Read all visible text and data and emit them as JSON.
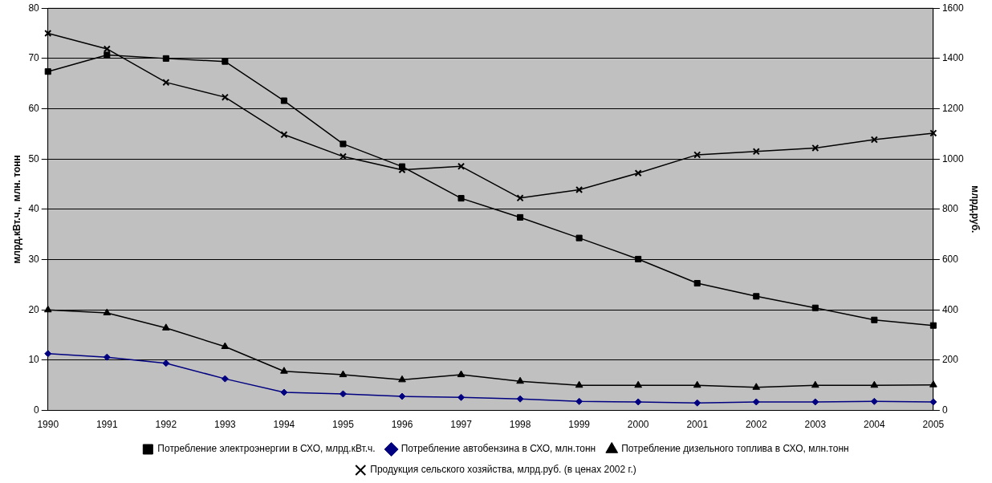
{
  "chart_data": {
    "type": "line",
    "categories": [
      "1990",
      "1991",
      "1992",
      "1993",
      "1994",
      "1995",
      "1996",
      "1997",
      "1998",
      "1999",
      "2000",
      "2001",
      "2002",
      "2003",
      "2004",
      "2005"
    ],
    "ylabel": "млрд.кВт.ч.,  млн. тонн",
    "y2label": "млрд.руб.",
    "ylim": [
      0,
      80
    ],
    "yticks": [
      0,
      10,
      20,
      30,
      40,
      50,
      60,
      70,
      80
    ],
    "y2lim": [
      0,
      1600
    ],
    "y2ticks": [
      0,
      200,
      400,
      600,
      800,
      1000,
      1200,
      1400,
      1600
    ],
    "grid": "y",
    "legend": "bottom",
    "line_style": "solid",
    "series": [
      {
        "name": "Потребление электроэнергии в СХО, млрд.кВт.ч.",
        "color": "#000000",
        "marker": "square",
        "values": [
          67.4,
          70.7,
          70.0,
          69.4,
          61.6,
          53.0,
          48.5,
          42.2,
          38.4,
          34.3,
          30.1,
          25.3,
          22.7,
          20.4,
          18.0,
          16.9
        ]
      },
      {
        "name": "Потребление автобензина в СХО, млн.тонн",
        "color": "#000080",
        "marker": "diamond",
        "values": [
          11.3,
          10.6,
          9.4,
          6.3,
          3.6,
          3.3,
          2.8,
          2.6,
          2.3,
          1.8,
          1.7,
          1.5,
          1.7,
          1.7,
          1.8,
          1.7
        ]
      },
      {
        "name": "Потребление дизельного топлива в СХО, млн.тонн",
        "color": "#000000",
        "marker": "triangle",
        "values": [
          20.0,
          19.4,
          16.4,
          12.7,
          7.8,
          7.1,
          6.1,
          7.1,
          5.8,
          5.0,
          5.0,
          5.0,
          4.6,
          5.0,
          5.0,
          5.1
        ]
      },
      {
        "name": "Продукция сельского хозяйства, млрд.руб. (в ценах 2002 г.)",
        "color": "#000000",
        "marker": "cross",
        "axis": "y2",
        "values": [
          1500,
          1438,
          1305,
          1246,
          1097,
          1010,
          957,
          971,
          845,
          878,
          944,
          1017,
          1030,
          1044,
          1077,
          1103
        ]
      }
    ]
  }
}
